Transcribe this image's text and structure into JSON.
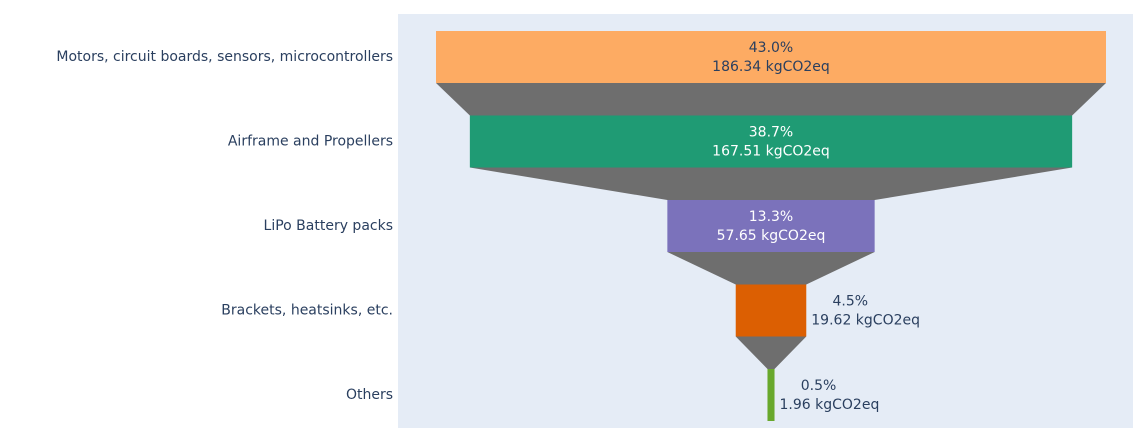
{
  "chart_data": {
    "type": "funnel",
    "categories": [
      "Motors, circuit boards, sensors, microcontrollers",
      "Airframe and Propellers",
      "LiPo Battery packs",
      "Brackets, heatsinks, etc.",
      "Others"
    ],
    "values": [
      186.34,
      167.51,
      57.65,
      19.62,
      1.96
    ],
    "value_labels": [
      "186.34 kgCO2eq",
      "167.51 kgCO2eq",
      "57.65 kgCO2eq",
      "19.62 kgCO2eq",
      "1.96 kgCO2eq"
    ],
    "percents": [
      43.0,
      38.7,
      13.3,
      4.5,
      0.5
    ],
    "percent_labels": [
      "43.0%",
      "38.7%",
      "13.3%",
      "4.5%",
      "0.5%"
    ],
    "colors": [
      "#fdab63",
      "#1f9b74",
      "#7b72bb",
      "#dc5f02",
      "#68a82c"
    ],
    "text_colors": [
      "#2a3f5f",
      "#ffffff",
      "#ffffff",
      "#2a3f5f",
      "#2a3f5f"
    ],
    "connector_color": "#6e6e6e",
    "background": "#e5ecf6"
  }
}
